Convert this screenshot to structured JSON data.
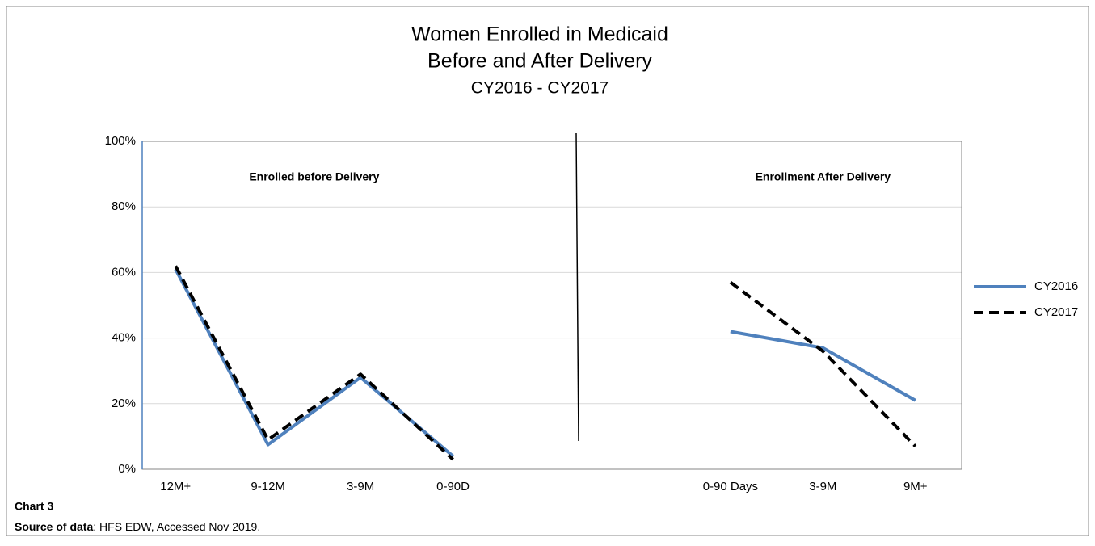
{
  "chart_data": {
    "type": "line",
    "title": "Women Enrolled in Medicaid",
    "title_line2": "Before and After Delivery",
    "subtitle": "CY2016 - CY2017",
    "categories": [
      "12M+",
      "9-12M",
      "3-9M",
      "0-90D",
      null,
      null,
      "0-90 Days",
      "3-9M",
      "9M+"
    ],
    "series": [
      {
        "name": "CY2016",
        "color": "#4f81bd",
        "dash": false,
        "values": [
          61,
          7.5,
          28,
          4,
          null,
          null,
          42,
          37,
          21
        ]
      },
      {
        "name": "CY2017",
        "color": "#000000",
        "dash": true,
        "values": [
          62,
          9,
          29,
          3,
          null,
          null,
          57,
          36,
          7
        ]
      }
    ],
    "ylim": [
      0,
      100
    ],
    "yticks": [
      {
        "value": 0,
        "label": "0%"
      },
      {
        "value": 20,
        "label": "20%"
      },
      {
        "value": 40,
        "label": "40%"
      },
      {
        "value": 60,
        "label": "60%"
      },
      {
        "value": 80,
        "label": "80%"
      },
      {
        "value": 100,
        "label": "100%"
      }
    ],
    "grid": true,
    "legend": "right",
    "annotations": [
      "Enrolled before Delivery",
      "Enrollment After Delivery"
    ],
    "footer_title": "Chart 3",
    "source_label": "Source of data",
    "source_text": ": HFS EDW, Accessed Nov 2019."
  }
}
